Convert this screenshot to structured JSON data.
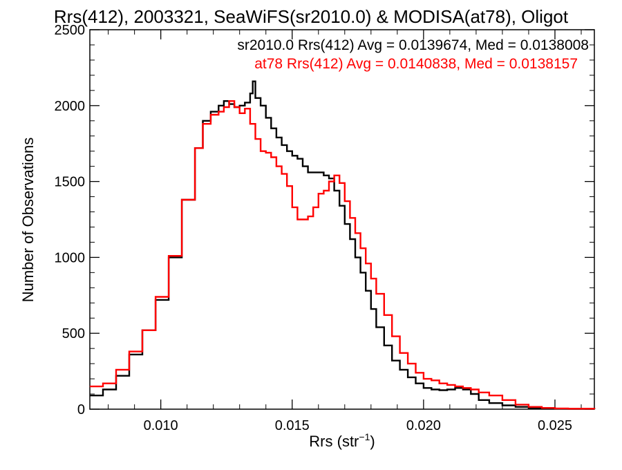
{
  "chart_data": {
    "type": "line",
    "title": "Rrs(412), 2003321, SeaWiFS(sr2010.0) & MODISA(at78), Oligot",
    "xlabel": "Rrs (str",
    "xlabel_sup": "−1",
    "xlabel_close": ")",
    "ylabel": "Number of Observations",
    "xlim": [
      0.0073,
      0.0265
    ],
    "ylim": [
      0,
      2500
    ],
    "xticks": [
      0.01,
      0.015,
      0.02,
      0.025
    ],
    "xtick_labels": [
      "0.010",
      "0.015",
      "0.020",
      "0.025"
    ],
    "yticks": [
      0,
      500,
      1000,
      1500,
      2000,
      2500
    ],
    "ytick_labels": [
      "0",
      "500",
      "1000",
      "1500",
      "2000",
      "2500"
    ],
    "grid": false,
    "legend_position": "top-right",
    "series": [
      {
        "name": "sr2010.0",
        "color": "#000000",
        "annotation": "sr2010.0 Rrs(412) Avg = 0.0139674, Med = 0.0138008",
        "x": [
          0.0073,
          0.0078,
          0.0083,
          0.0088,
          0.0093,
          0.0098,
          0.0103,
          0.0108,
          0.0113,
          0.0116,
          0.0119,
          0.0122,
          0.0124,
          0.0126,
          0.0128,
          0.013,
          0.0132,
          0.0134,
          0.0135,
          0.0136,
          0.0138,
          0.014,
          0.0142,
          0.0144,
          0.0146,
          0.0148,
          0.015,
          0.0152,
          0.0154,
          0.0156,
          0.0158,
          0.016,
          0.0162,
          0.0164,
          0.0166,
          0.0168,
          0.017,
          0.0172,
          0.0174,
          0.0176,
          0.0178,
          0.018,
          0.0182,
          0.0185,
          0.0188,
          0.0191,
          0.0194,
          0.0197,
          0.02,
          0.0203,
          0.0206,
          0.0209,
          0.0212,
          0.0215,
          0.0218,
          0.0221,
          0.0225,
          0.023,
          0.0235,
          0.024,
          0.0245,
          0.025,
          0.0255,
          0.0265
        ],
        "y": [
          90,
          130,
          220,
          360,
          520,
          720,
          1000,
          1380,
          1720,
          1900,
          1960,
          2000,
          2030,
          2010,
          1990,
          2000,
          2020,
          2080,
          2160,
          2050,
          2000,
          1920,
          1850,
          1790,
          1740,
          1700,
          1670,
          1650,
          1600,
          1560,
          1560,
          1560,
          1540,
          1520,
          1440,
          1340,
          1220,
          1120,
          1000,
          900,
          780,
          660,
          540,
          420,
          320,
          260,
          210,
          170,
          140,
          130,
          125,
          130,
          140,
          130,
          100,
          60,
          40,
          25,
          15,
          8,
          5,
          3,
          2,
          0
        ]
      },
      {
        "name": "at78",
        "color": "#ff0000",
        "annotation": "at78 Rrs(412) Avg = 0.0140838, Med = 0.0138157",
        "x": [
          0.0073,
          0.0078,
          0.0083,
          0.0088,
          0.0093,
          0.0098,
          0.0103,
          0.0108,
          0.0113,
          0.0116,
          0.0119,
          0.0122,
          0.0124,
          0.0126,
          0.0128,
          0.013,
          0.0132,
          0.0134,
          0.0136,
          0.0138,
          0.014,
          0.0142,
          0.0144,
          0.0146,
          0.0148,
          0.015,
          0.0152,
          0.0154,
          0.0156,
          0.0158,
          0.016,
          0.0162,
          0.0164,
          0.0166,
          0.0168,
          0.017,
          0.0172,
          0.0174,
          0.0176,
          0.0178,
          0.018,
          0.0182,
          0.0185,
          0.0188,
          0.0191,
          0.0194,
          0.0197,
          0.02,
          0.0203,
          0.0206,
          0.0209,
          0.0212,
          0.0215,
          0.0218,
          0.0221,
          0.0225,
          0.023,
          0.0235,
          0.024,
          0.0245,
          0.025,
          0.0255,
          0.0265
        ],
        "y": [
          150,
          170,
          260,
          380,
          520,
          740,
          1010,
          1380,
          1720,
          1880,
          1940,
          1960,
          1990,
          2030,
          1990,
          1950,
          1980,
          1880,
          1780,
          1700,
          1690,
          1660,
          1600,
          1550,
          1470,
          1330,
          1250,
          1250,
          1270,
          1330,
          1420,
          1440,
          1500,
          1540,
          1490,
          1370,
          1260,
          1160,
          1060,
          960,
          860,
          760,
          620,
          480,
          370,
          300,
          240,
          200,
          190,
          170,
          160,
          150,
          140,
          130,
          110,
          90,
          60,
          30,
          15,
          8,
          5,
          3,
          0
        ]
      }
    ]
  }
}
